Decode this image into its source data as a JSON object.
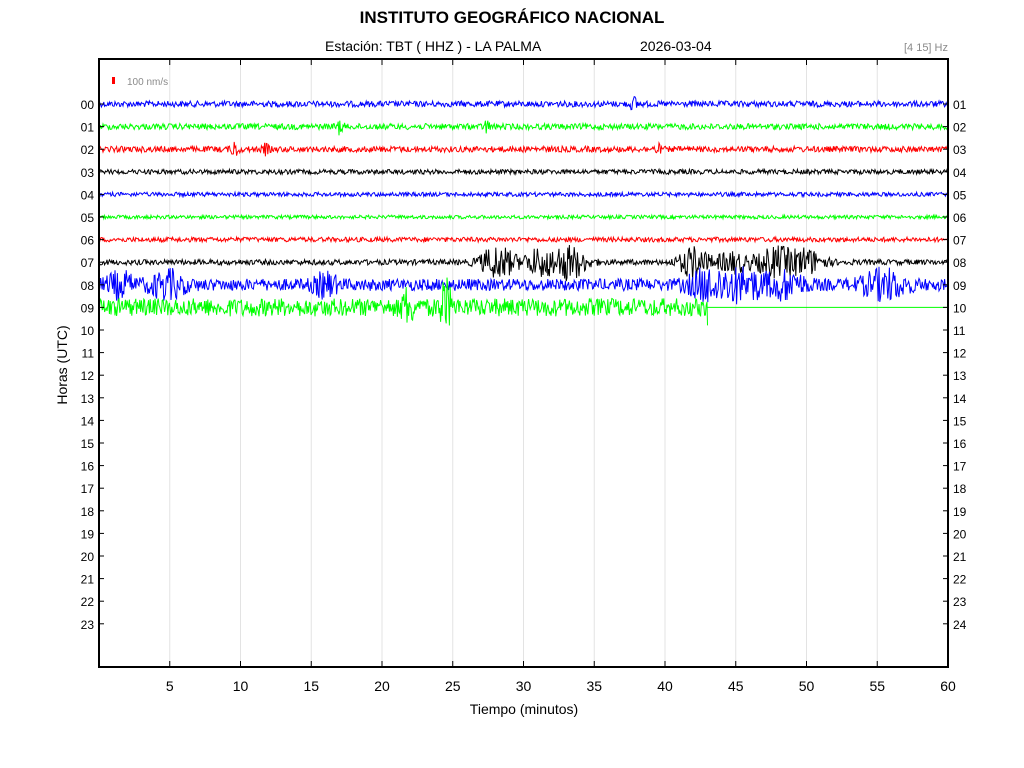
{
  "header": {
    "title": "INSTITUTO GEOGRÁFICO NACIONAL",
    "station": "Estación:  TBT ( HHZ ) - LA PALMA",
    "date": "2026-03-04",
    "filter": "[4 15] Hz"
  },
  "chart_data": {
    "type": "line",
    "title": "INSTITUTO GEOGRÁFICO NACIONAL",
    "xlabel": "Tiempo (minutos)",
    "ylabel": "Horas (UTC)",
    "xlim": [
      0,
      60
    ],
    "x_ticks": [
      5,
      10,
      15,
      20,
      25,
      30,
      35,
      40,
      45,
      50,
      55,
      60
    ],
    "left_hour_labels": [
      "00",
      "01",
      "02",
      "03",
      "04",
      "05",
      "06",
      "07",
      "08",
      "09",
      "10",
      "11",
      "12",
      "13",
      "14",
      "15",
      "16",
      "17",
      "18",
      "19",
      "20",
      "21",
      "22",
      "23"
    ],
    "right_hour_labels": [
      "01",
      "02",
      "03",
      "04",
      "05",
      "06",
      "07",
      "08",
      "09",
      "10",
      "11",
      "12",
      "13",
      "14",
      "15",
      "16",
      "17",
      "18",
      "19",
      "20",
      "21",
      "22",
      "23",
      "24"
    ],
    "scale_label": "100 nm/s",
    "scale_color": "#ff0000",
    "grid": "vertical",
    "data_end_minute": 43,
    "series": [
      {
        "hour": "00",
        "color": "#0000ff",
        "noise": 1.0,
        "bursts": [
          [
            37.8,
            0.25,
            6
          ]
        ]
      },
      {
        "hour": "01",
        "color": "#00ff00",
        "noise": 1.0,
        "bursts": [
          [
            17.0,
            0.25,
            6
          ],
          [
            27.4,
            0.2,
            6
          ]
        ]
      },
      {
        "hour": "02",
        "color": "#ff0000",
        "noise": 1.0,
        "bursts": [
          [
            9.6,
            0.25,
            7
          ],
          [
            11.8,
            0.2,
            5
          ],
          [
            39.5,
            0.2,
            4
          ]
        ]
      },
      {
        "hour": "03",
        "color": "#000000",
        "noise": 0.8,
        "bursts": []
      },
      {
        "hour": "04",
        "color": "#0000ff",
        "noise": 0.7,
        "bursts": []
      },
      {
        "hour": "05",
        "color": "#00ff00",
        "noise": 0.6,
        "bursts": []
      },
      {
        "hour": "06",
        "color": "#ff0000",
        "noise": 0.8,
        "bursts": []
      },
      {
        "hour": "07",
        "color": "#000000",
        "noise": 0.9,
        "bursts": [
          [
            28.2,
            1.2,
            16
          ],
          [
            31.1,
            1.0,
            13
          ],
          [
            33.2,
            1.2,
            17
          ],
          [
            42.0,
            1.0,
            15
          ],
          [
            44.8,
            1.2,
            10
          ],
          [
            47.8,
            1.3,
            14
          ],
          [
            50.0,
            1.2,
            12
          ]
        ]
      },
      {
        "hour": "08",
        "color": "#0000ff",
        "noise": 2.0,
        "bursts": [
          [
            1.5,
            0.9,
            11
          ],
          [
            4.8,
            1.2,
            12
          ],
          [
            16.0,
            0.8,
            10
          ],
          [
            43.0,
            1.3,
            14
          ],
          [
            45.5,
            1.5,
            14
          ],
          [
            48.5,
            1.3,
            12
          ],
          [
            55.5,
            1.5,
            13
          ]
        ]
      },
      {
        "hour": "09",
        "color": "#00ff00",
        "noise": 3.0,
        "bursts": [
          [
            21.8,
            0.4,
            14
          ],
          [
            24.5,
            0.4,
            22
          ]
        ]
      }
    ]
  }
}
